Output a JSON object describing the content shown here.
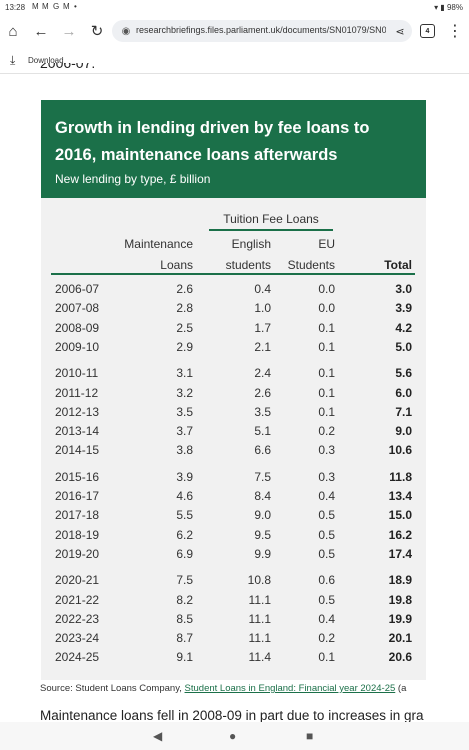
{
  "status_bar": {
    "time": "13:28",
    "notif_icons": [
      "M",
      "M",
      "G",
      "M",
      "•"
    ],
    "battery": "98%"
  },
  "browser": {
    "url": "researchbriefings.files.parliament.uk/documents/SN01079/SN0",
    "tab_count": "4",
    "download_label": "Download"
  },
  "page": {
    "previous_text": "2006-07.",
    "chart": {
      "title": "Growth in lending driven by fee loans to 2016, maintenance loans afterwards",
      "subtitle": "New lending by type, £ billion",
      "group_header": "Tuition Fee Loans",
      "col_maint_1": "Maintenance",
      "col_maint_2": "Loans",
      "col_eng_1": "English",
      "col_eng_2": "students",
      "col_eu_1": "EU",
      "col_eu_2": "Students",
      "col_total": "Total"
    },
    "source_prefix": "Source: Student Loans Company, ",
    "source_link": "Student Loans in England: Financial year 2024-25",
    "source_suffix": " (a",
    "next_paragraph": "Maintenance loans fell in 2008-09 in part due to increases in gra"
  },
  "chart_data": {
    "type": "table",
    "title": "Growth in lending driven by fee loans to 2016, maintenance loans afterwards",
    "subtitle": "New lending by type, £ billion",
    "columns": [
      "Maintenance Loans",
      "English students",
      "EU Students",
      "Total"
    ],
    "rows": [
      {
        "year": "2006-07",
        "maint": "2.6",
        "eng": "0.4",
        "eu": "0.0",
        "total": "3.0"
      },
      {
        "year": "2007-08",
        "maint": "2.8",
        "eng": "1.0",
        "eu": "0.0",
        "total": "3.9"
      },
      {
        "year": "2008-09",
        "maint": "2.5",
        "eng": "1.7",
        "eu": "0.1",
        "total": "4.2"
      },
      {
        "year": "2009-10",
        "maint": "2.9",
        "eng": "2.1",
        "eu": "0.1",
        "total": "5.0"
      },
      {
        "year": "2010-11",
        "maint": "3.1",
        "eng": "2.4",
        "eu": "0.1",
        "total": "5.6"
      },
      {
        "year": "2011-12",
        "maint": "3.2",
        "eng": "2.6",
        "eu": "0.1",
        "total": "6.0"
      },
      {
        "year": "2012-13",
        "maint": "3.5",
        "eng": "3.5",
        "eu": "0.1",
        "total": "7.1"
      },
      {
        "year": "2013-14",
        "maint": "3.7",
        "eng": "5.1",
        "eu": "0.2",
        "total": "9.0"
      },
      {
        "year": "2014-15",
        "maint": "3.8",
        "eng": "6.6",
        "eu": "0.3",
        "total": "10.6"
      },
      {
        "year": "2015-16",
        "maint": "3.9",
        "eng": "7.5",
        "eu": "0.3",
        "total": "11.8"
      },
      {
        "year": "2016-17",
        "maint": "4.6",
        "eng": "8.4",
        "eu": "0.4",
        "total": "13.4"
      },
      {
        "year": "2017-18",
        "maint": "5.5",
        "eng": "9.0",
        "eu": "0.5",
        "total": "15.0"
      },
      {
        "year": "2018-19",
        "maint": "6.2",
        "eng": "9.5",
        "eu": "0.5",
        "total": "16.2"
      },
      {
        "year": "2019-20",
        "maint": "6.9",
        "eng": "9.9",
        "eu": "0.5",
        "total": "17.4"
      },
      {
        "year": "2020-21",
        "maint": "7.5",
        "eng": "10.8",
        "eu": "0.6",
        "total": "18.9"
      },
      {
        "year": "2021-22",
        "maint": "8.2",
        "eng": "11.1",
        "eu": "0.5",
        "total": "19.8"
      },
      {
        "year": "2022-23",
        "maint": "8.5",
        "eng": "11.1",
        "eu": "0.4",
        "total": "19.9"
      },
      {
        "year": "2023-24",
        "maint": "8.7",
        "eng": "11.1",
        "eu": "0.2",
        "total": "20.1"
      },
      {
        "year": "2024-25",
        "maint": "9.1",
        "eng": "11.4",
        "eu": "0.1",
        "total": "20.6"
      }
    ]
  },
  "icons": [
    "home-icon",
    "back-icon",
    "forward-icon",
    "reload-icon",
    "site-info-icon",
    "share-icon",
    "tabs-icon",
    "menu-icon",
    "download-icon"
  ],
  "colors": {
    "header_green": "#1b7049",
    "table_bg": "#f1f1f1"
  }
}
